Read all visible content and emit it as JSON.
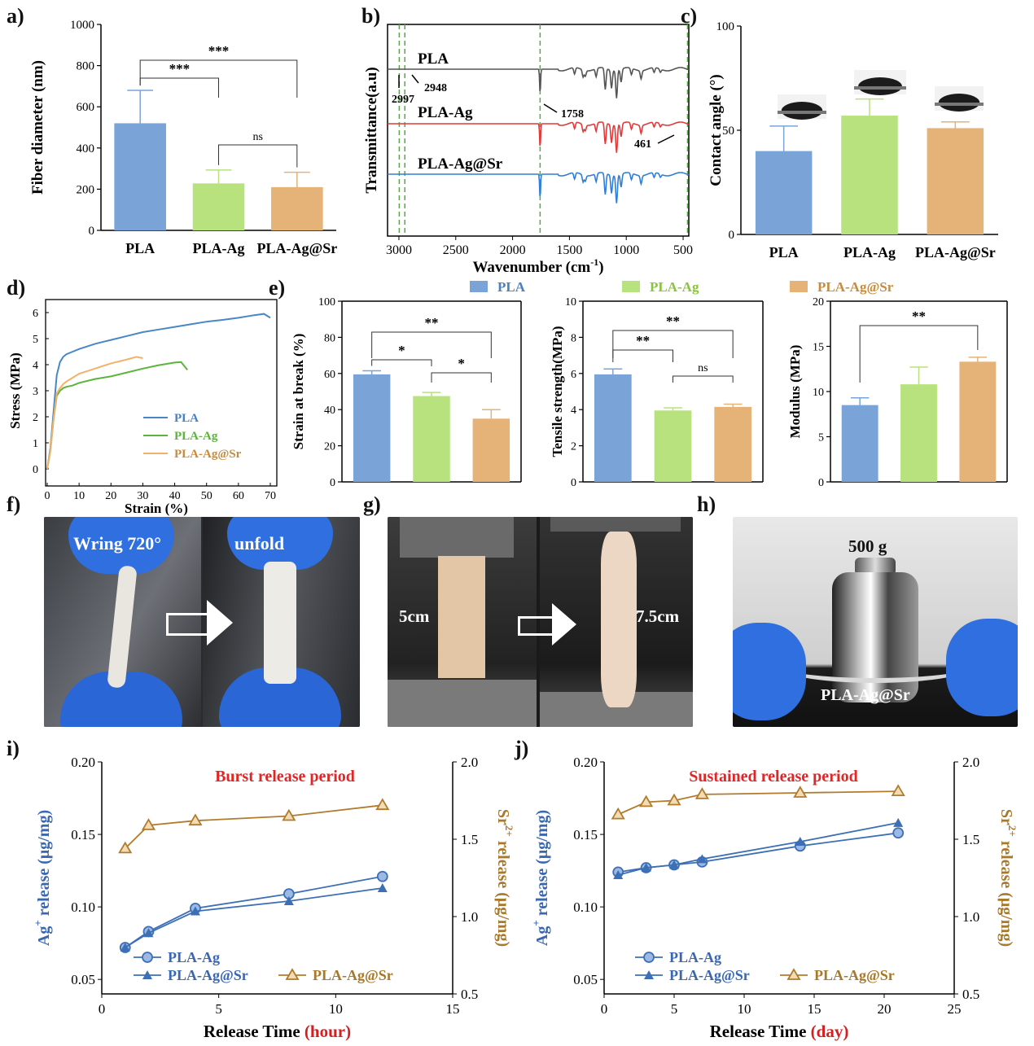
{
  "chart_data": [
    {
      "panel": "a)",
      "type": "bar",
      "ylabel": "Fiber diameter (nm)",
      "ylim": [
        0,
        1000
      ],
      "yticks": [
        "0",
        "200",
        "400",
        "600",
        "800",
        "1000"
      ],
      "categories": [
        "PLA",
        "PLA-Ag",
        "PLA-Ag@Sr"
      ],
      "values": [
        520,
        228,
        210
      ],
      "errors": [
        160,
        65,
        72
      ],
      "colors": [
        "#7aa3d8",
        "#b7e27d",
        "#e5b277"
      ],
      "significance": [
        {
          "pair": [
            "PLA",
            "PLA-Ag"
          ],
          "label": "***"
        },
        {
          "pair": [
            "PLA",
            "PLA-Ag@Sr"
          ],
          "label": "***"
        },
        {
          "pair": [
            "PLA-Ag",
            "PLA-Ag@Sr"
          ],
          "label": "ns"
        }
      ]
    },
    {
      "panel": "b)",
      "type": "line",
      "xlabel": "Wavenumber  (cm",
      "xlabel_sup": "-1",
      "xlabel_end": ")",
      "ylabel": "Transmittance(a.u)",
      "xlim": [
        3100,
        450
      ],
      "xticks": [
        "3000",
        "2500",
        "2000",
        "1500",
        "1000",
        "500"
      ],
      "series": [
        {
          "name": "PLA",
          "color": "#555555"
        },
        {
          "name": "PLA-Ag",
          "color": "#e03a3a"
        },
        {
          "name": "PLA-Ag@Sr",
          "color": "#2f7fd6"
        }
      ],
      "marked_peaks": [
        2997,
        2948,
        1758,
        461
      ],
      "annotations": [
        "2997",
        "2948",
        "1758",
        "461"
      ]
    },
    {
      "panel": "c)",
      "type": "bar",
      "ylabel": "Contact angle (°)",
      "ylim": [
        0,
        100
      ],
      "yticks": [
        "0",
        "50",
        "100"
      ],
      "categories": [
        "PLA",
        "PLA-Ag",
        "PLA-Ag@Sr"
      ],
      "values": [
        40,
        57,
        51
      ],
      "errors": [
        12,
        8,
        3
      ],
      "colors": [
        "#7aa3d8",
        "#b7e27d",
        "#e5b277"
      ]
    },
    {
      "panel": "d)",
      "type": "line",
      "xlabel": "Strain (%)",
      "ylabel": "Stress (MPa)",
      "xlim": [
        0,
        70
      ],
      "ylim": [
        0,
        6
      ],
      "xticks": [
        "0",
        "10",
        "20",
        "30",
        "40",
        "50",
        "60",
        "70"
      ],
      "yticks": [
        "0",
        "1",
        "2",
        "3",
        "4",
        "5",
        "6"
      ],
      "series": [
        {
          "name": "PLA",
          "color": "#4a86c6",
          "x": [
            0,
            1,
            2,
            3,
            4,
            5,
            6,
            8,
            10,
            15,
            20,
            25,
            30,
            35,
            40,
            45,
            50,
            55,
            60,
            65,
            68,
            70
          ],
          "y": [
            0,
            0.8,
            2.2,
            3.6,
            4.1,
            4.3,
            4.4,
            4.5,
            4.6,
            4.8,
            4.95,
            5.1,
            5.25,
            5.35,
            5.45,
            5.55,
            5.65,
            5.72,
            5.8,
            5.9,
            5.95,
            5.8
          ]
        },
        {
          "name": "PLA-Ag",
          "color": "#5bb53a",
          "x": [
            0,
            1,
            2,
            3,
            4,
            5,
            6,
            8,
            10,
            15,
            20,
            25,
            30,
            35,
            40,
            42,
            44
          ],
          "y": [
            0,
            0.7,
            1.9,
            2.8,
            3.0,
            3.1,
            3.15,
            3.2,
            3.3,
            3.45,
            3.55,
            3.7,
            3.85,
            3.98,
            4.08,
            4.1,
            3.8
          ]
        },
        {
          "name": "PLA-Ag@Sr",
          "color": "#f2b26b",
          "x": [
            0,
            1,
            2,
            3,
            4,
            5,
            6,
            8,
            10,
            15,
            20,
            25,
            28,
            30
          ],
          "y": [
            0,
            0.7,
            1.9,
            2.9,
            3.1,
            3.25,
            3.35,
            3.5,
            3.65,
            3.85,
            4.05,
            4.2,
            4.3,
            4.25
          ]
        }
      ]
    },
    {
      "panel": "e)",
      "type": "bar",
      "legend": [
        "PLA",
        "PLA-Ag",
        "PLA-Ag@Sr"
      ],
      "colors": [
        "#7aa3d8",
        "#b7e27d",
        "#e5b277"
      ],
      "subplots": [
        {
          "ylabel": "Strain at break (%)",
          "ylim": [
            0,
            100
          ],
          "yticks": [
            "0",
            "20",
            "40",
            "60",
            "80",
            "100"
          ],
          "values": [
            59.5,
            47.5,
            35
          ],
          "errors": [
            2,
            2,
            5
          ],
          "significance": [
            {
              "pair": [
                0,
                1
              ],
              "label": "*"
            },
            {
              "pair": [
                0,
                2
              ],
              "label": "**"
            },
            {
              "pair": [
                1,
                2
              ],
              "label": "*"
            }
          ]
        },
        {
          "ylabel": "Tensile strength(MPa)",
          "ylim": [
            0,
            10
          ],
          "yticks": [
            "0",
            "2",
            "4",
            "6",
            "8",
            "10"
          ],
          "values": [
            5.95,
            3.95,
            4.15
          ],
          "errors": [
            0.3,
            0.15,
            0.15
          ],
          "significance": [
            {
              "pair": [
                0,
                1
              ],
              "label": "**"
            },
            {
              "pair": [
                0,
                2
              ],
              "label": "**"
            },
            {
              "pair": [
                1,
                2
              ],
              "label": "ns"
            }
          ]
        },
        {
          "ylabel": "Modulus (MPa)",
          "ylim": [
            0,
            20
          ],
          "yticks": [
            "0",
            "5",
            "10",
            "15",
            "20"
          ],
          "values": [
            8.5,
            10.8,
            13.3
          ],
          "errors": [
            0.8,
            1.9,
            0.5
          ],
          "significance": [
            {
              "pair": [
                0,
                2
              ],
              "label": "**"
            }
          ]
        }
      ]
    },
    {
      "panel": "i)",
      "type": "line",
      "title": "Burst release period",
      "xlabel": "Release Time",
      "xlabel_unit": "(hour)",
      "ylabel": "release (μg/mg)",
      "ylabel_ion": "Ag",
      "ylabel_ion_sup": "+",
      "y2label": "release (μg/mg)",
      "y2label_ion": "Sr",
      "y2label_ion_sup": "2+",
      "xlim": [
        0,
        15
      ],
      "ylim": [
        0.04,
        0.2
      ],
      "y2lim": [
        0.5,
        2.0
      ],
      "xticks": [
        "0",
        "5",
        "10",
        "15"
      ],
      "yticks": [
        "0.05",
        "0.10",
        "0.15",
        "0.20"
      ],
      "y2ticks": [
        "0.5",
        "1.0",
        "1.5",
        "2.0"
      ],
      "series": [
        {
          "name": "PLA-Ag",
          "axis": "left",
          "marker": "circle",
          "color": "#3d6fb6",
          "x": [
            1,
            2,
            4,
            8,
            12
          ],
          "y": [
            0.072,
            0.083,
            0.099,
            0.109,
            0.121
          ]
        },
        {
          "name": "PLA-Ag@Sr",
          "axis": "left",
          "marker": "triangle",
          "color": "#3d6fb6",
          "x": [
            1,
            2,
            4,
            8,
            12
          ],
          "y": [
            0.072,
            0.082,
            0.097,
            0.104,
            0.113
          ]
        },
        {
          "name": "PLA-Ag@Sr",
          "axis": "right",
          "marker": "triangle-open",
          "color": "#b27b2c",
          "x": [
            1,
            2,
            4,
            8,
            12
          ],
          "y": [
            1.44,
            1.59,
            1.62,
            1.65,
            1.72
          ]
        }
      ]
    },
    {
      "panel": "j)",
      "type": "line",
      "title": "Sustained release period",
      "xlabel": "Release Time",
      "xlabel_unit": "(day)",
      "ylabel": "release (μg/mg)",
      "ylabel_ion": "Ag",
      "ylabel_ion_sup": "+",
      "y2label": "release (μg/mg)",
      "y2label_ion": "Sr",
      "y2label_ion_sup": "2+",
      "xlim": [
        0,
        25
      ],
      "ylim": [
        0.04,
        0.2
      ],
      "y2lim": [
        0.5,
        2.0
      ],
      "xticks": [
        "0",
        "5",
        "10",
        "15",
        "20",
        "25"
      ],
      "yticks": [
        "0.05",
        "0.10",
        "0.15",
        "0.20"
      ],
      "y2ticks": [
        "0.5",
        "1.0",
        "1.5",
        "2.0"
      ],
      "series": [
        {
          "name": "PLA-Ag",
          "axis": "left",
          "marker": "circle",
          "color": "#3d6fb6",
          "x": [
            1,
            3,
            5,
            7,
            14,
            21
          ],
          "y": [
            0.124,
            0.127,
            0.129,
            0.131,
            0.142,
            0.151
          ]
        },
        {
          "name": "PLA-Ag@Sr",
          "axis": "left",
          "marker": "triangle",
          "color": "#3d6fb6",
          "x": [
            1,
            3,
            5,
            7,
            14,
            21
          ],
          "y": [
            0.122,
            0.127,
            0.129,
            0.133,
            0.145,
            0.158
          ]
        },
        {
          "name": "PLA-Ag@Sr",
          "axis": "right",
          "marker": "triangle-open",
          "color": "#b27b2c",
          "x": [
            1,
            3,
            5,
            7,
            14,
            21
          ],
          "y": [
            1.66,
            1.74,
            1.75,
            1.79,
            1.8,
            1.81
          ]
        }
      ]
    }
  ],
  "photos": {
    "f": {
      "panel": "f)",
      "left_label": "Wring 720°",
      "right_label": "unfold"
    },
    "g": {
      "panel": "g)",
      "left_label": "5cm",
      "right_label": "7.5cm"
    },
    "h": {
      "panel": "h)",
      "weight_label": "500 g",
      "sample_label": "PLA-Ag@Sr"
    }
  }
}
